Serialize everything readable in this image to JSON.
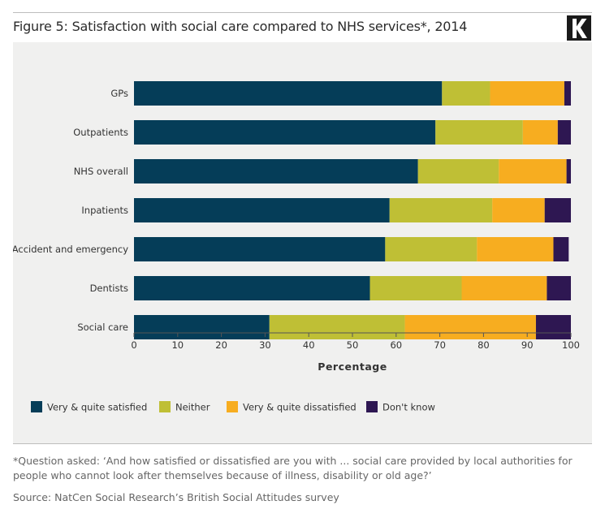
{
  "header": {
    "title": "Figure 5: Satisfaction with social care compared to NHS services*, 2014",
    "logo_letter": "K"
  },
  "colors": {
    "satisfied": "#053d58",
    "neither": "#bfbf35",
    "dissatisfied": "#f7ad20",
    "dont_know": "#2e1752"
  },
  "chart_data": {
    "type": "bar",
    "orientation": "horizontal",
    "stacked": true,
    "title": "Figure 5: Satisfaction with social care compared to NHS services*, 2014",
    "xlabel": "Percentage",
    "ylabel": "",
    "xlim": [
      0,
      100
    ],
    "xticks": [
      0,
      10,
      20,
      30,
      40,
      50,
      60,
      70,
      80,
      90,
      100
    ],
    "categories": [
      "GPs",
      "Outpatients",
      "NHS overall",
      "Inpatients",
      "Accident and emergency",
      "Dentists",
      "Social care"
    ],
    "series": [
      {
        "name": "Very & quite satisfied",
        "color_key": "satisfied",
        "values": [
          70.5,
          69,
          65,
          58.5,
          57.5,
          54,
          31
        ]
      },
      {
        "name": "Neither",
        "color_key": "neither",
        "values": [
          11,
          20,
          18.5,
          23.5,
          21,
          21,
          31
        ]
      },
      {
        "name": "Very & quite dissatisfied",
        "color_key": "dissatisfied",
        "values": [
          17,
          8,
          15.5,
          12,
          17.5,
          19.5,
          30
        ]
      },
      {
        "name": "Don't know",
        "color_key": "dont_know",
        "values": [
          1.5,
          3,
          1,
          6,
          3.5,
          5.5,
          8
        ]
      }
    ],
    "legend_position": "bottom-left"
  },
  "footer": {
    "note": "*Question asked: ‘And how satisfied or dissatisfied are you with ... social care provided by local authorities for people who cannot look after themselves because of illness, disability or old age?’",
    "source": "Source: NatCen Social Research’s British Social Attitudes survey"
  }
}
